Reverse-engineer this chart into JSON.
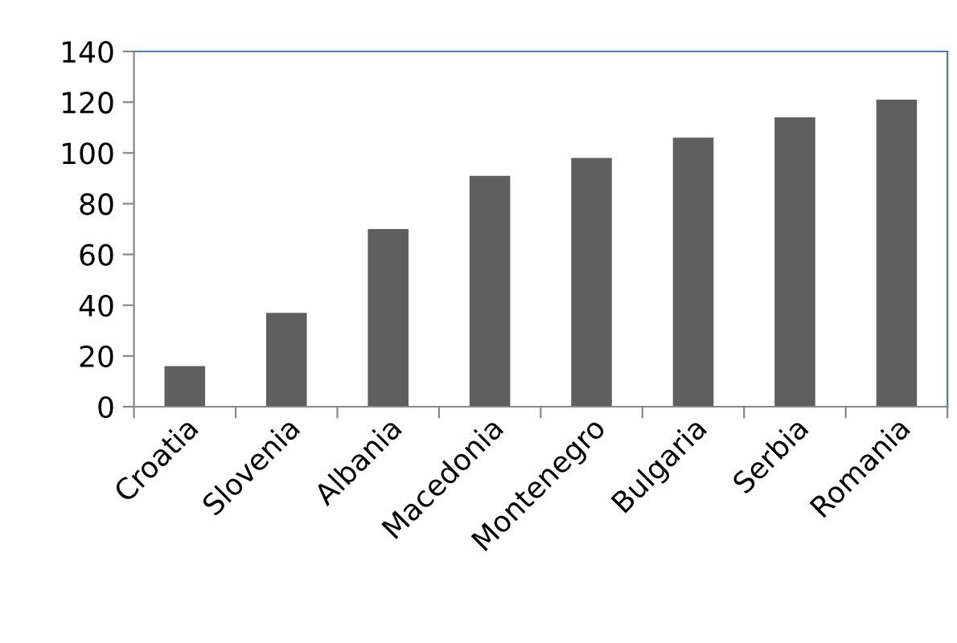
{
  "chart_data": {
    "type": "bar",
    "categories": [
      "Croatia",
      "Slovenia",
      "Albania",
      "Macedonia",
      "Montenegro",
      "Bulgaria",
      "Serbia",
      "Romania"
    ],
    "values": [
      16,
      37,
      70,
      91,
      98,
      106,
      114,
      121
    ],
    "color": "#5f5f5f",
    "ylim": [
      0,
      140
    ],
    "yticks": [
      0,
      20,
      40,
      60,
      80,
      100,
      120,
      140
    ],
    "grid": false,
    "legend": false
  }
}
